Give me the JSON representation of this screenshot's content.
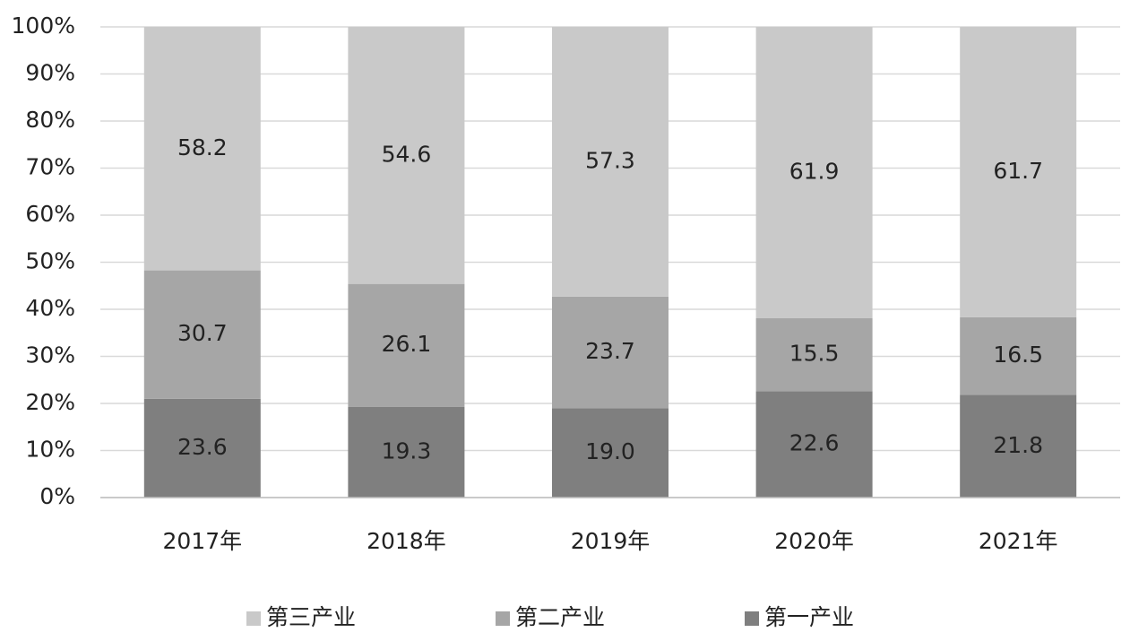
{
  "chart_data": {
    "type": "bar",
    "stacking": "percent",
    "categories": [
      "2017年",
      "2018年",
      "2019年",
      "2020年",
      "2021年"
    ],
    "series": [
      {
        "name": "第一产业",
        "color": "#7f7f7f",
        "values": [
          23.6,
          19.3,
          19.0,
          22.6,
          21.8
        ],
        "value_labels": [
          "23.6",
          "19.3",
          "19.0",
          "22.6",
          "21.8"
        ]
      },
      {
        "name": "第二产业",
        "color": "#a6a6a6",
        "values": [
          30.7,
          26.1,
          23.7,
          15.5,
          16.5
        ],
        "value_labels": [
          "30.7",
          "26.1",
          "23.7",
          "15.5",
          "16.5"
        ]
      },
      {
        "name": "第三产业",
        "color": "#c9c9c9",
        "values": [
          58.2,
          54.6,
          57.3,
          61.9,
          61.7
        ],
        "value_labels": [
          "58.2",
          "54.6",
          "57.3",
          "61.9",
          "61.7"
        ]
      }
    ],
    "ylim": [
      0,
      100
    ],
    "yticks": [
      {
        "value": 0,
        "label": "0%"
      },
      {
        "value": 10,
        "label": "10%"
      },
      {
        "value": 20,
        "label": "20%"
      },
      {
        "value": 30,
        "label": "30%"
      },
      {
        "value": 40,
        "label": "40%"
      },
      {
        "value": 50,
        "label": "50%"
      },
      {
        "value": 60,
        "label": "60%"
      },
      {
        "value": 70,
        "label": "70%"
      },
      {
        "value": 80,
        "label": "80%"
      },
      {
        "value": 90,
        "label": "90%"
      },
      {
        "value": 100,
        "label": "100%"
      }
    ],
    "grid": true,
    "legend": "bottom"
  }
}
